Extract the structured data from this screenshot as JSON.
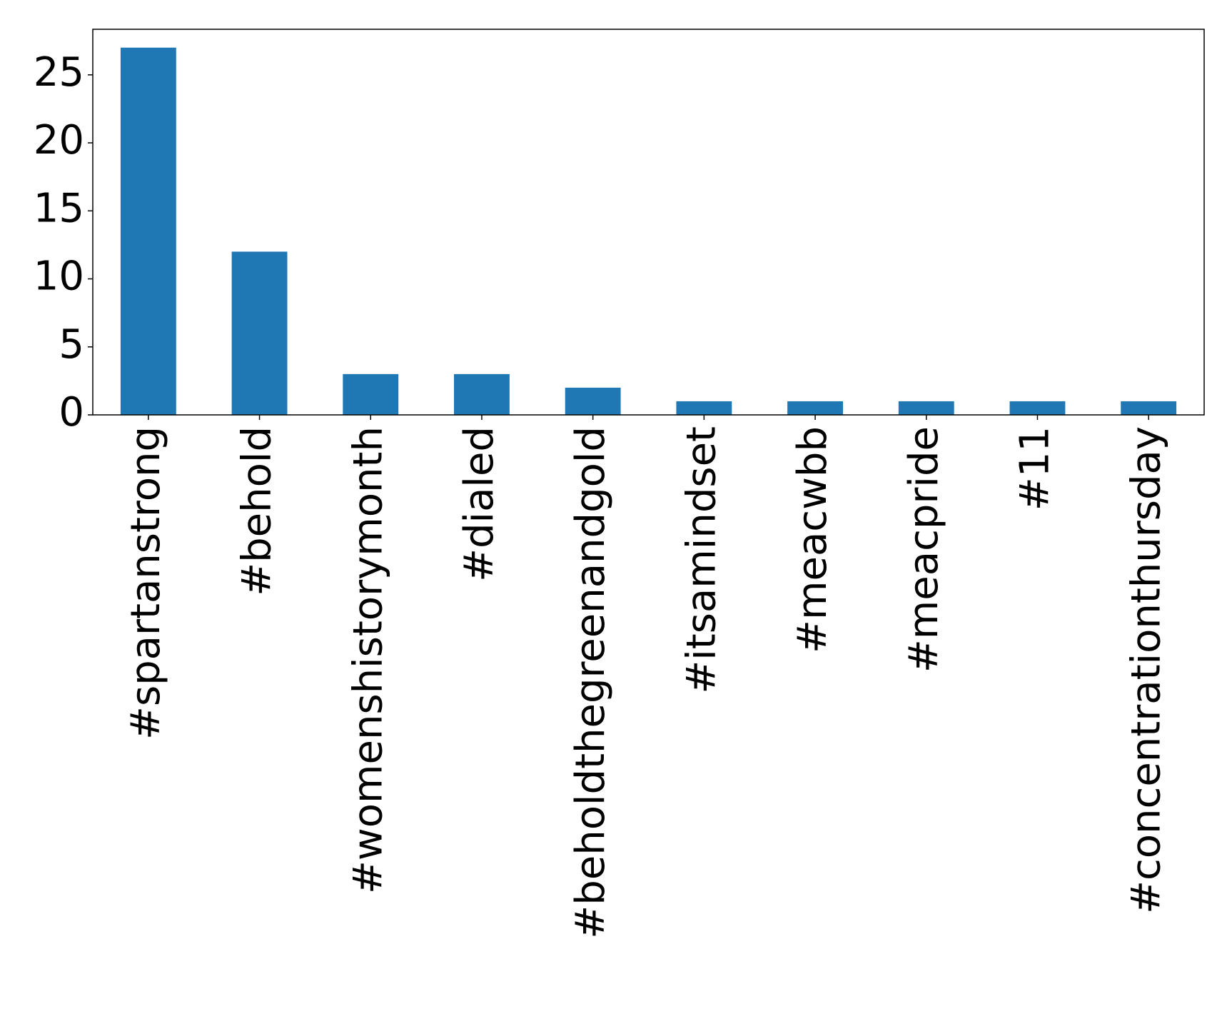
{
  "chart_data": {
    "type": "bar",
    "title": "",
    "xlabel": "",
    "ylabel": "",
    "categories": [
      "#spartanstrong",
      "#behold",
      "#womenshistorymonth",
      "#dialed",
      "#beholdthegreenandgold",
      "#itsamindset",
      "#meacwbb",
      "#meacpride",
      "#11",
      "#concentrationthursday"
    ],
    "values": [
      27,
      12,
      3,
      3,
      2,
      1,
      1,
      1,
      1,
      1
    ],
    "yticks": [
      0,
      5,
      10,
      15,
      20,
      25
    ],
    "ylim": [
      0,
      28.35
    ],
    "grid": false,
    "legend": "none",
    "colors": {
      "bar": "#1f77b4",
      "axis": "#000000"
    }
  }
}
